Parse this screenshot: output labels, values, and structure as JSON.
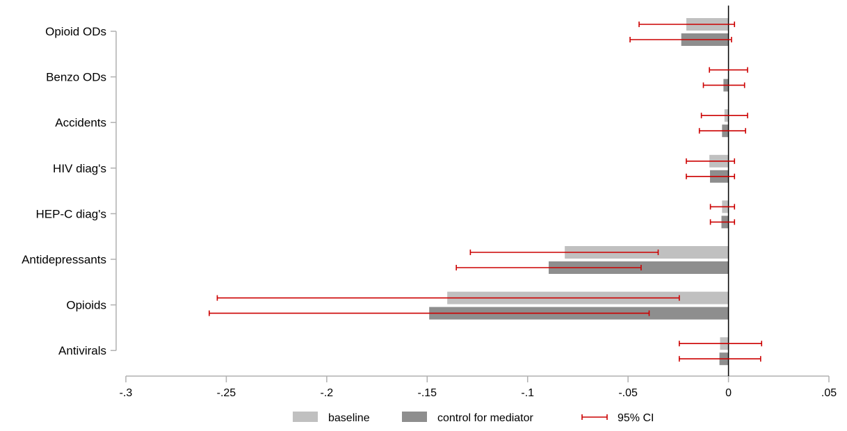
{
  "chart_data": {
    "type": "bar",
    "orientation": "horizontal",
    "categories": [
      "Opioid ODs",
      "Benzo ODs",
      "Accidents",
      "HIV diag's",
      "HEP-C diag's",
      "Antidepressants",
      "Opioids",
      "Antivirals"
    ],
    "series": [
      {
        "name": "baseline",
        "color": "#c0c0c0",
        "values": [
          -0.021,
          0.0,
          -0.002,
          -0.0095,
          -0.0032,
          -0.0815,
          -0.14,
          -0.0042
        ],
        "ci_low": [
          -0.0445,
          -0.0095,
          -0.0135,
          -0.021,
          -0.009,
          -0.1285,
          -0.2545,
          -0.0245
        ],
        "ci_high": [
          0.003,
          0.0095,
          0.0095,
          0.003,
          0.003,
          -0.035,
          -0.0245,
          0.0165
        ]
      },
      {
        "name": "control for mediator",
        "color": "#8e8e8e",
        "values": [
          -0.0235,
          -0.0025,
          -0.0032,
          -0.0092,
          -0.0035,
          -0.0895,
          -0.149,
          -0.0045
        ],
        "ci_low": [
          -0.049,
          -0.0125,
          -0.0145,
          -0.021,
          -0.009,
          -0.1355,
          -0.2585,
          -0.0245
        ],
        "ci_high": [
          0.0015,
          0.008,
          0.0085,
          0.003,
          0.003,
          -0.0435,
          -0.0395,
          0.016
        ]
      }
    ],
    "ci_series_name": "95% CI",
    "ci_color": "#cc0000",
    "x_ticks": [
      -0.3,
      -0.25,
      -0.2,
      -0.15,
      -0.1,
      -0.05,
      0,
      0.05
    ],
    "x_tick_labels": [
      "-.3",
      "-.25",
      "-.2",
      "-.15",
      "-.1",
      "-.05",
      "0",
      ".05"
    ],
    "xlim": [
      -0.3,
      0.05
    ],
    "title": "",
    "xlabel": "",
    "ylabel": "",
    "grid": false,
    "legend_position": "bottom"
  }
}
